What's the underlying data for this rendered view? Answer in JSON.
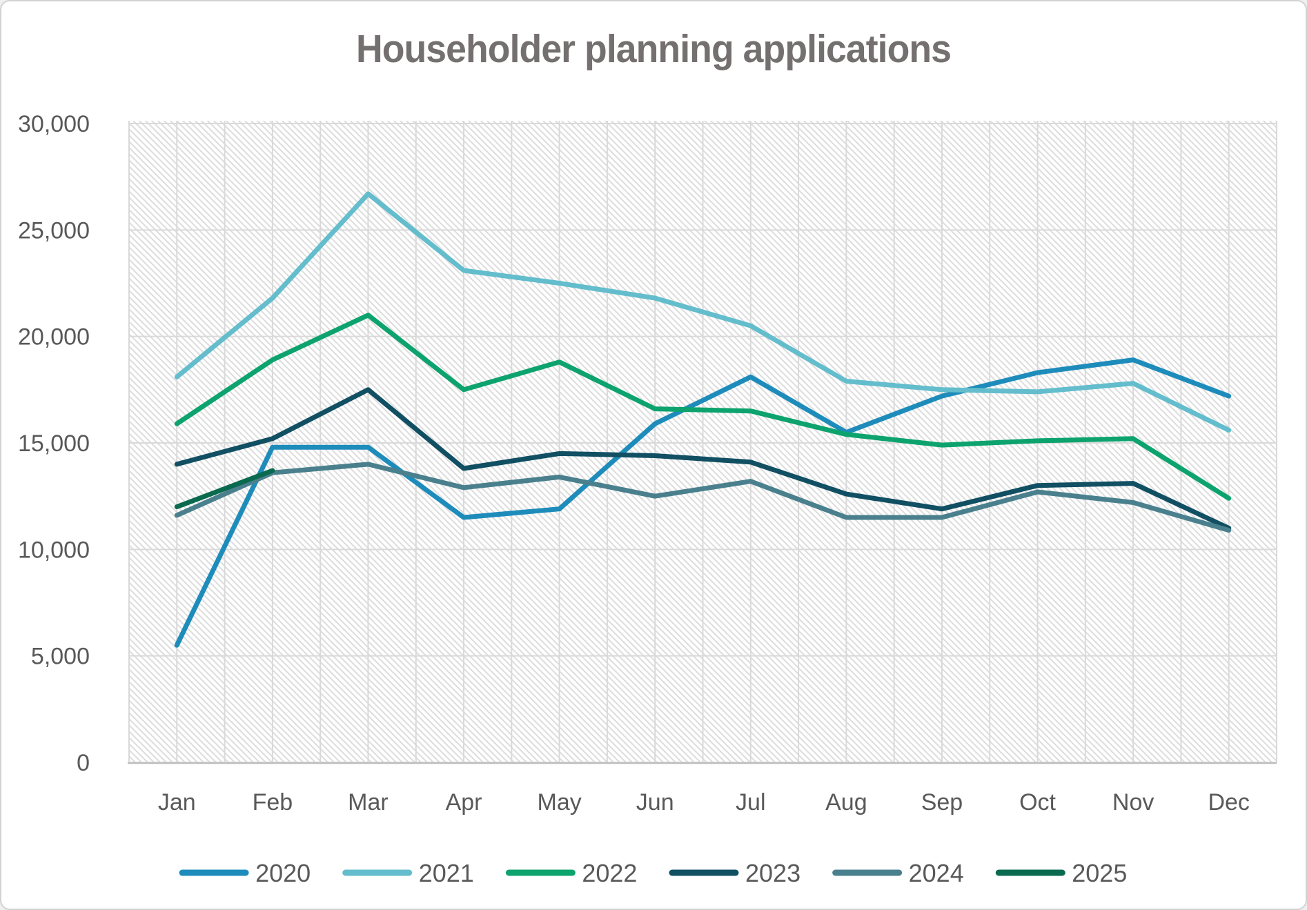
{
  "title": "Householder planning applications",
  "chart_data": {
    "type": "line",
    "categories": [
      "Jan",
      "Feb",
      "Mar",
      "Apr",
      "May",
      "Jun",
      "Jul",
      "Aug",
      "Sep",
      "Oct",
      "Nov",
      "Dec"
    ],
    "series": [
      {
        "name": "2020",
        "color": "#1E8CBB",
        "values": [
          5500,
          14800,
          14800,
          11500,
          11900,
          15900,
          18100,
          15500,
          17200,
          18300,
          18900,
          17200
        ]
      },
      {
        "name": "2021",
        "color": "#63BDCC",
        "values": [
          18100,
          21800,
          26700,
          23100,
          22500,
          21800,
          20500,
          17900,
          17500,
          17400,
          17800,
          15600
        ]
      },
      {
        "name": "2022",
        "color": "#0DA36E",
        "values": [
          15900,
          18900,
          21000,
          17500,
          18800,
          16600,
          16500,
          15400,
          14900,
          15100,
          15200,
          12400
        ]
      },
      {
        "name": "2023",
        "color": "#114F63",
        "values": [
          14000,
          15200,
          17500,
          13800,
          14500,
          14400,
          14100,
          12600,
          11900,
          13000,
          13100,
          11000
        ]
      },
      {
        "name": "2024",
        "color": "#4A808D",
        "values": [
          11600,
          13600,
          14000,
          12900,
          13400,
          12500,
          13200,
          11500,
          11500,
          12700,
          12200,
          10900
        ]
      },
      {
        "name": "2025",
        "color": "#0A6A4F",
        "values": [
          12000,
          13700,
          null,
          null,
          null,
          null,
          null,
          null,
          null,
          null,
          null,
          null
        ]
      }
    ],
    "ylim": [
      0,
      30000
    ],
    "ytick_step": 5000,
    "ytick_labels": [
      "0",
      "5,000",
      "10,000",
      "15,000",
      "20,000",
      "25,000",
      "30,000"
    ],
    "grid": true,
    "legend_position": "bottom",
    "plot_background": "diagonal-hatch"
  },
  "colors": {
    "title_text": "#757070",
    "axis_text": "#595959",
    "gridline": "#D9D9D9",
    "axis_line": "#BFBFBF",
    "hatch": "#DEDEDE",
    "border": "#D2D2D2"
  }
}
